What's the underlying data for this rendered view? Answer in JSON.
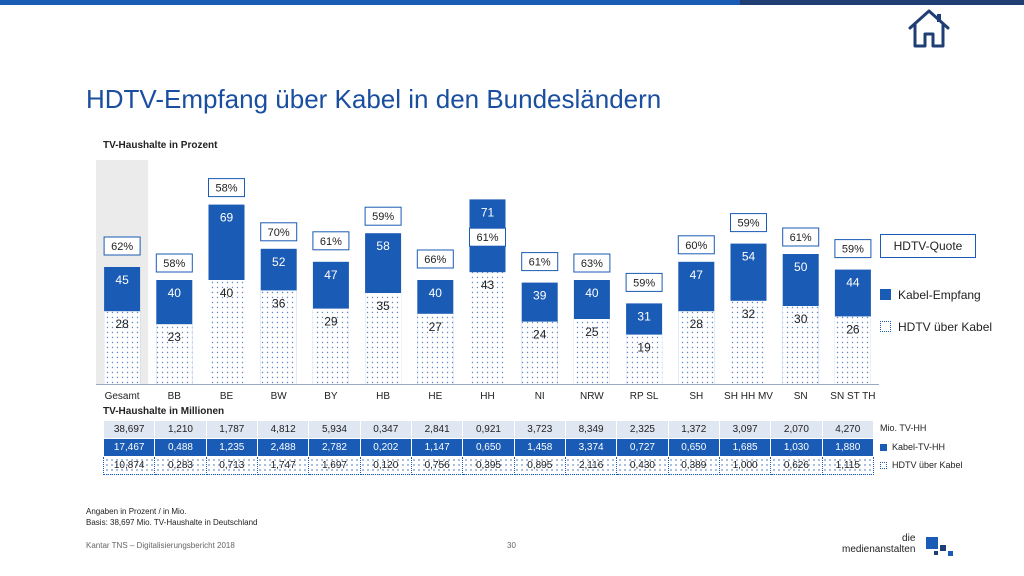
{
  "title": "HDTV-Empfang über Kabel in den Bundesländern",
  "subtitle_percent": "TV-Haushalte in Prozent",
  "subtitle_millions": "TV-Haushalte in Millionen",
  "legend": {
    "quota_label": "HDTV-Quote",
    "cable_label": "Kabel-Empfang",
    "hdtv_label": "HDTV über Kabel"
  },
  "row_labels": {
    "tv_hh": "Mio. TV-HH",
    "cable_hh": "Kabel-TV-HH",
    "hdtv_cable": "HDTV über Kabel"
  },
  "chart_data": {
    "type": "bar",
    "title": "HDTV-Empfang über Kabel in den Bundesländern",
    "ylabel": "TV-Haushalte in Prozent",
    "ylim": [
      0,
      80
    ],
    "categories": [
      "Gesamt",
      "BB",
      "BE",
      "BW",
      "BY",
      "HB",
      "HE",
      "HH",
      "NI",
      "NRW",
      "RP SL",
      "SH",
      "SH HH MV",
      "SN",
      "SN ST TH"
    ],
    "series": [
      {
        "name": "Kabel-Empfang",
        "values": [
          45,
          40,
          69,
          52,
          47,
          58,
          40,
          71,
          39,
          40,
          31,
          47,
          54,
          50,
          44
        ]
      },
      {
        "name": "HDTV über Kabel",
        "values": [
          28,
          23,
          40,
          36,
          29,
          35,
          27,
          43,
          24,
          25,
          19,
          28,
          32,
          30,
          26
        ]
      }
    ],
    "quota": [
      "62%",
      "58%",
      "58%",
      "70%",
      "61%",
      "59%",
      "66%",
      "61%",
      "61%",
      "63%",
      "59%",
      "60%",
      "59%",
      "61%",
      "59%"
    ],
    "highlight_category": "Gesamt",
    "colors": {
      "cable": "#1a5bb5",
      "hdtv_dots": "#5f86c5",
      "highlight": "#ebebeb"
    }
  },
  "table": {
    "tv_hh": [
      "38,697",
      "1,210",
      "1,787",
      "4,812",
      "5,934",
      "0,347",
      "2,841",
      "0,921",
      "3,723",
      "8,349",
      "2,325",
      "1,372",
      "3,097",
      "2,070",
      "4,270"
    ],
    "cable_hh": [
      "17,467",
      "0,488",
      "1,235",
      "2,488",
      "2,782",
      "0,202",
      "1,147",
      "0,650",
      "1,458",
      "3,374",
      "0,727",
      "0,650",
      "1,685",
      "1,030",
      "1,880"
    ],
    "hdtv_cable": [
      "10,874",
      "0,283",
      "0,713",
      "1,747",
      "1,697",
      "0,120",
      "0,756",
      "0,395",
      "0,895",
      "2,116",
      "0,430",
      "0,389",
      "1,000",
      "0,626",
      "1,115"
    ]
  },
  "footnote_1": "Angaben in Prozent / in Mio.",
  "footnote_2": "Basis: 38,697 Mio. TV-Haushalte in Deutschland",
  "source": "Kantar TNS – Digitalisierungsbericht 2018",
  "page_number": "30",
  "logo_text_1": "die",
  "logo_text_2": "medienanstalten"
}
